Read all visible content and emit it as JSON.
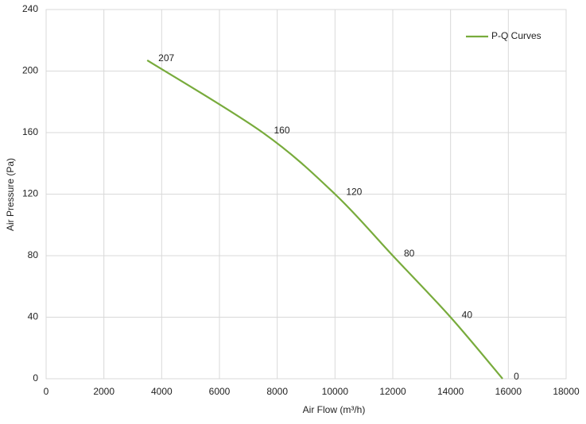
{
  "chart_data": {
    "type": "line",
    "x_label": "Air Flow  (m³/h)",
    "y_label": "Air Pressure  (Pa)",
    "x": [
      3500,
      7500,
      10000,
      12000,
      14000,
      15800
    ],
    "series": [
      {
        "name": "P-Q Curves",
        "color": "#78ab3c",
        "values": [
          207,
          160,
          120,
          80,
          40,
          0
        ]
      }
    ],
    "xlim": [
      0,
      18000
    ],
    "xticks": [
      0,
      2000,
      4000,
      6000,
      8000,
      10000,
      12000,
      14000,
      16000,
      18000
    ],
    "ylim": [
      0,
      240
    ],
    "yticks": [
      0,
      40,
      80,
      120,
      160,
      200,
      240
    ],
    "grid": true,
    "legend": "top-right"
  }
}
